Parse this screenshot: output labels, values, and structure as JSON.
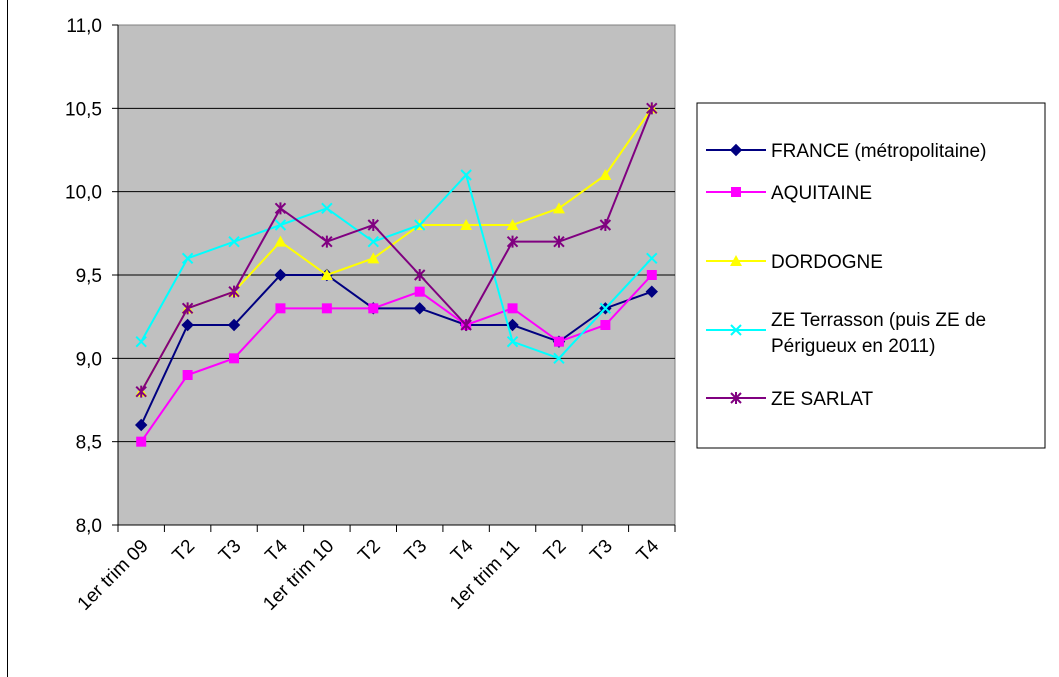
{
  "chart_data": {
    "type": "line",
    "title": "",
    "xlabel": "",
    "ylabel": "",
    "categories": [
      "1er trim 09",
      "T2",
      "T3",
      "T4",
      "1er trim 10",
      "T2",
      "T3",
      "T4",
      "1er trim 11",
      "T2",
      "T3",
      "T4"
    ],
    "ylim": [
      8.0,
      11.0
    ],
    "yticks": [
      "8,0",
      "8,5",
      "9,0",
      "9,5",
      "10,0",
      "10,5",
      "11,0"
    ],
    "grid": true,
    "legend_position": "right",
    "plot_background": "#c0c0c0",
    "series": [
      {
        "name": "FRANCE (métropolitaine)",
        "color": "#000080",
        "marker": "diamond",
        "values": [
          8.6,
          9.2,
          9.2,
          9.5,
          9.5,
          9.3,
          9.3,
          9.2,
          9.2,
          9.1,
          9.3,
          9.4
        ]
      },
      {
        "name": "AQUITAINE",
        "color": "#ff00ff",
        "marker": "square",
        "values": [
          8.5,
          8.9,
          9.0,
          9.3,
          9.3,
          9.3,
          9.4,
          9.2,
          9.3,
          9.1,
          9.2,
          9.5
        ]
      },
      {
        "name": "DORDOGNE",
        "color": "#ffff00",
        "marker": "triangle",
        "values": [
          8.8,
          9.3,
          9.4,
          9.7,
          9.5,
          9.6,
          9.8,
          9.8,
          9.8,
          9.9,
          10.1,
          10.5
        ]
      },
      {
        "name": "ZE Terrasson (puis ZE de Périgueux en 2011)",
        "legend_lines": [
          "ZE Terrasson (puis ZE de",
          "Périgueux en 2011)"
        ],
        "color": "#00ffff",
        "marker": "x",
        "values": [
          9.1,
          9.6,
          9.7,
          9.8,
          9.9,
          9.7,
          9.8,
          10.1,
          9.1,
          9.0,
          9.3,
          9.6
        ]
      },
      {
        "name": "ZE SARLAT",
        "color": "#800080",
        "marker": "star",
        "values": [
          8.8,
          9.3,
          9.4,
          9.9,
          9.7,
          9.8,
          9.5,
          9.2,
          9.7,
          9.7,
          9.8,
          10.5
        ]
      }
    ]
  }
}
